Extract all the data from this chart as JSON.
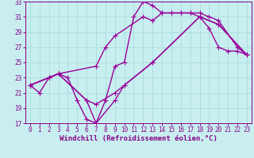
{
  "bg_color": "#c8eef0",
  "grid_color": "#aadddd",
  "line_color": "#990099",
  "xlim": [
    -0.5,
    23.5
  ],
  "ylim": [
    17,
    33
  ],
  "xticks": [
    0,
    1,
    2,
    3,
    4,
    5,
    6,
    7,
    8,
    9,
    10,
    11,
    12,
    13,
    14,
    15,
    16,
    17,
    18,
    19,
    20,
    21,
    22,
    23
  ],
  "yticks": [
    17,
    19,
    21,
    23,
    25,
    27,
    29,
    31,
    33
  ],
  "xlabel": "Windchill (Refroidissement éolien,°C)",
  "line1_x": [
    0,
    1,
    2,
    3,
    4,
    5,
    6,
    7,
    8,
    9,
    10,
    11,
    12,
    13,
    14,
    15,
    16,
    17,
    18,
    19,
    20,
    21,
    22,
    23
  ],
  "line1_y": [
    22,
    21,
    23,
    23.5,
    23,
    20,
    17.5,
    17,
    20,
    24.5,
    25,
    31,
    33,
    32.5,
    31.5,
    31.5,
    31.5,
    31.5,
    31,
    29.5,
    27,
    26.5,
    26.5,
    26
  ],
  "line2_x": [
    0,
    2,
    3,
    7,
    8,
    9,
    12,
    13,
    14,
    15,
    16,
    17,
    18,
    19,
    20,
    22,
    23
  ],
  "line2_y": [
    22,
    23,
    23.5,
    24.5,
    27,
    28.5,
    31,
    30.5,
    31.5,
    31.5,
    31.5,
    31.5,
    31.5,
    31,
    30.5,
    27,
    26
  ],
  "line3_x": [
    0,
    2,
    3,
    6,
    7,
    9,
    10,
    13,
    18,
    20,
    23
  ],
  "line3_y": [
    22,
    23,
    23.5,
    20,
    19.5,
    21,
    22,
    25,
    31,
    30,
    26
  ],
  "line4_x": [
    0,
    3,
    6,
    7,
    9,
    10,
    13,
    18,
    20,
    23
  ],
  "line4_y": [
    22,
    23.5,
    20,
    17,
    20,
    22,
    25,
    31,
    30,
    26
  ],
  "marker": "+",
  "markersize": 4,
  "linewidth": 1.0,
  "font_color": "#880088",
  "tick_fontsize": 5.5,
  "label_fontsize": 6.5
}
